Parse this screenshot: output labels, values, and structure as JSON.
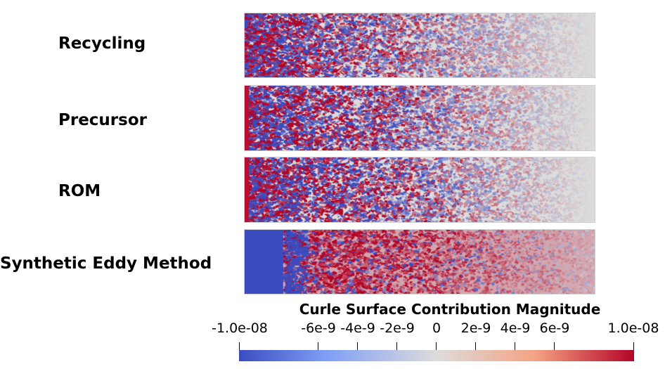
{
  "rows": [
    {
      "label": "Recycling",
      "style": "recycling"
    },
    {
      "label": "Precursor",
      "style": "precursor"
    },
    {
      "label": "ROM",
      "style": "rom"
    },
    {
      "label": "Synthetic Eddy Method",
      "style": "sem"
    }
  ],
  "colorbar": {
    "title": "Curle Surface Contribution Magnitude",
    "ticks": [
      {
        "label": "-1.0e-08",
        "value": -1e-08
      },
      {
        "label": "-6e-9",
        "value": -6e-09
      },
      {
        "label": "-4e-9",
        "value": -4e-09
      },
      {
        "label": "-2e-9",
        "value": -2e-09
      },
      {
        "label": "0",
        "value": 0
      },
      {
        "label": "2e-9",
        "value": 2e-09
      },
      {
        "label": "4e-9",
        "value": 4e-09
      },
      {
        "label": "6e-9",
        "value": 6e-09
      },
      {
        "label": "1.0e-08",
        "value": 1e-08
      }
    ],
    "range": [
      -1e-08,
      1e-08
    ],
    "colormap": [
      "#3b4cc0",
      "#dddcdc",
      "#b40426"
    ]
  }
}
